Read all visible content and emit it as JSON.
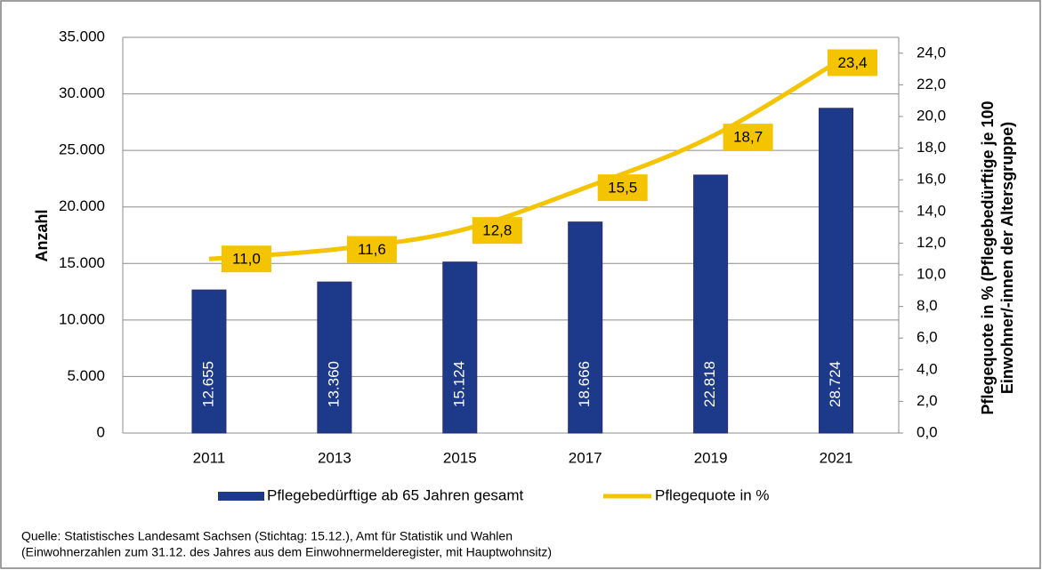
{
  "chart_data": {
    "type": "bar_line",
    "categories": [
      "2011",
      "2013",
      "2015",
      "2017",
      "2019",
      "2021"
    ],
    "series": [
      {
        "name": "Pflegebedürftige ab 65 Jahren gesamt",
        "type": "bar",
        "color": "#1d3a8a",
        "values": [
          12655,
          13360,
          15124,
          18666,
          22818,
          28724
        ],
        "value_labels": [
          "12.655",
          "13.360",
          "15.124",
          "18.666",
          "22.818",
          "28.724"
        ]
      },
      {
        "name": "Pflegequote in %",
        "type": "line",
        "axis": "y2",
        "color": "#f5c400",
        "values": [
          11.0,
          11.6,
          12.8,
          15.5,
          18.7,
          23.4
        ],
        "value_labels": [
          "11,0",
          "11,6",
          "12,8",
          "15,5",
          "18,7",
          "23,4"
        ]
      }
    ],
    "ylabel": "Anzahl",
    "y2label": [
      "Pflegequote in % (Pflegebedürftige je 100",
      "Einwohner/-innen  der Altersgruppe)"
    ],
    "ylim": [
      0,
      35000
    ],
    "yticks": [
      0,
      {
        "value": 5000,
        "label": "5.000"
      },
      {
        "value": 10000,
        "label": "10.000"
      },
      {
        "value": 15000,
        "label": "15.000"
      },
      {
        "value": 20000,
        "label": "20.000"
      },
      {
        "value": 25000,
        "label": "25.000"
      },
      {
        "value": 30000,
        "label": "30.000"
      },
      {
        "value": 35000,
        "label": "35.000"
      }
    ],
    "y2lim": [
      0,
      25
    ],
    "y2ticks": [
      {
        "value": 0,
        "label": "0,0"
      },
      {
        "value": 2,
        "label": "2,0"
      },
      {
        "value": 4,
        "label": "4,0"
      },
      {
        "value": 6,
        "label": "6,0"
      },
      {
        "value": 8,
        "label": "8,0"
      },
      {
        "value": 10,
        "label": "10,0"
      },
      {
        "value": 12,
        "label": "12,0"
      },
      {
        "value": 14,
        "label": "14,0"
      },
      {
        "value": 16,
        "label": "16,0"
      },
      {
        "value": 18,
        "label": "18,0"
      },
      {
        "value": 20,
        "label": "20,0"
      },
      {
        "value": 22,
        "label": "22,0"
      },
      {
        "value": 24,
        "label": "24,0"
      }
    ],
    "grid": true,
    "legend": "bottom",
    "source": [
      "Quelle: Statistisches Landesamt Sachsen (Stichtag: 15.12.), Amt für Statistik und Wahlen",
      "(Einwohnerzahlen  zum  31.12. des Jahres aus dem Einwohnermelderegister,  mit Hauptwohnsitz)"
    ]
  }
}
